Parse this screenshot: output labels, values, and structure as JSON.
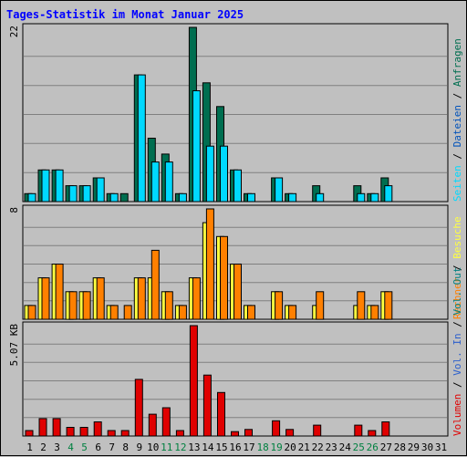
{
  "title": "Tages-Statistik im Monat Januar 2025",
  "colors": {
    "title": "#0000ff",
    "anfragen": "#006e50",
    "dateien": "#0052bb",
    "seiten": "#00d9ff",
    "besuche": "#ffff40",
    "rechner": "#ff8000",
    "vol_out": "#008080",
    "vol_in": "#2b5fcc",
    "volumen": "#e00000",
    "weekend_day": "#008040",
    "normal_day": "#000000"
  },
  "right_legend": {
    "top": [
      "Anfragen",
      "Dateien",
      "Seiten"
    ],
    "middle": [
      "Besuche",
      "Rechner"
    ],
    "bottom": [
      "Vol. Out",
      "Vol. In",
      "Volumen"
    ],
    "separator": "/"
  },
  "chart_data": {
    "type": "bar",
    "title": "Tages-Statistik im Monat Januar 2025",
    "days": [
      1,
      2,
      3,
      4,
      5,
      6,
      7,
      8,
      9,
      10,
      11,
      12,
      13,
      14,
      15,
      16,
      17,
      18,
      19,
      20,
      21,
      22,
      23,
      24,
      25,
      26,
      27,
      28,
      29,
      30,
      31
    ],
    "weekend_days": [
      4,
      5,
      11,
      12,
      18,
      19,
      25,
      26
    ],
    "panels": [
      {
        "name": "top",
        "scale_label": "22",
        "ymax": 22,
        "series": [
          {
            "name": "Anfragen",
            "values": [
              1,
              4,
              4,
              2,
              2,
              3,
              1,
              1,
              16,
              8,
              6,
              1,
              22,
              15,
              12,
              4,
              1,
              0,
              3,
              1,
              0,
              2,
              0,
              0,
              2,
              1,
              3,
              0,
              0,
              0,
              0
            ]
          },
          {
            "name": "Seiten",
            "values": [
              1,
              4,
              4,
              2,
              2,
              3,
              1,
              0,
              16,
              5,
              5,
              1,
              14,
              7,
              7,
              4,
              1,
              0,
              3,
              1,
              0,
              1,
              0,
              0,
              1,
              1,
              2,
              0,
              0,
              0,
              0
            ]
          }
        ]
      },
      {
        "name": "middle",
        "scale_label": "8",
        "ymax": 8,
        "series": [
          {
            "name": "Besuche",
            "values": [
              1,
              3,
              4,
              2,
              2,
              3,
              1,
              0,
              3,
              3,
              2,
              1,
              3,
              7,
              6,
              4,
              1,
              0,
              2,
              1,
              0,
              1,
              0,
              0,
              1,
              1,
              2,
              0,
              0,
              0,
              0
            ]
          },
          {
            "name": "Rechner",
            "values": [
              1,
              3,
              4,
              2,
              2,
              3,
              1,
              1,
              3,
              5,
              2,
              1,
              3,
              8,
              6,
              4,
              1,
              0,
              2,
              1,
              0,
              2,
              0,
              0,
              2,
              1,
              2,
              0,
              0,
              0,
              0
            ]
          }
        ]
      },
      {
        "name": "bottom",
        "scale_label": "5.07 KB",
        "ymax": 5.07,
        "series": [
          {
            "name": "Volumen",
            "values": [
              0.25,
              0.8,
              0.8,
              0.4,
              0.4,
              0.65,
              0.25,
              0.25,
              2.6,
              1.0,
              1.3,
              0.25,
              5.07,
              2.8,
              2.0,
              0.2,
              0.3,
              0,
              0.7,
              0.3,
              0,
              0.5,
              0,
              0,
              0.5,
              0.25,
              0.65,
              0,
              0,
              0,
              0
            ]
          }
        ]
      }
    ]
  }
}
